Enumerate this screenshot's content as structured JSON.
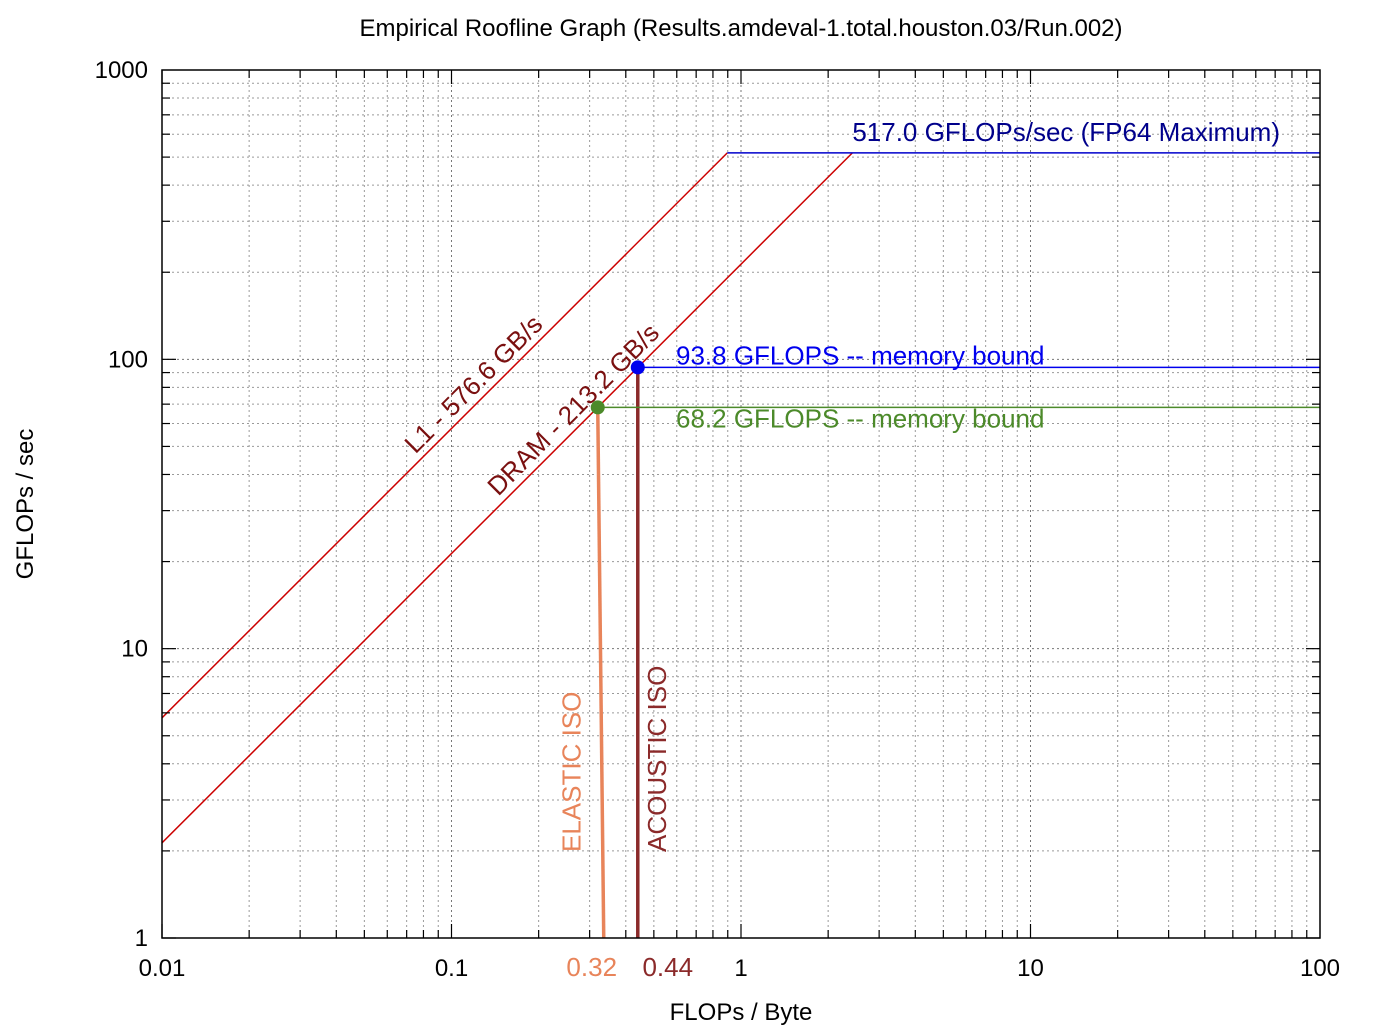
{
  "chart_data": {
    "type": "line",
    "title": "Empirical Roofline Graph (Results.amdeval-1.total.houston.03/Run.002)",
    "xlabel": "FLOPs / Byte",
    "ylabel": "GFLOPs / sec",
    "xscale": "log",
    "yscale": "log",
    "xlim": [
      0.01,
      100
    ],
    "ylim": [
      1,
      1000
    ],
    "grid": true,
    "x_ticks": [
      {
        "value": 0.01,
        "label": "0.01"
      },
      {
        "value": 0.1,
        "label": "0.1"
      },
      {
        "value": 1,
        "label": "1"
      },
      {
        "value": 10,
        "label": "10"
      },
      {
        "value": 100,
        "label": "100"
      }
    ],
    "y_ticks": [
      {
        "value": 1,
        "label": "1"
      },
      {
        "value": 10,
        "label": "10"
      },
      {
        "value": 100,
        "label": "100"
      },
      {
        "value": 1000,
        "label": "1000"
      }
    ],
    "ceilings": [
      {
        "name": "L1 - 576.6 GB/s",
        "bandwidth": 576.6,
        "color": "#cc0000",
        "label_color": "#7a1010"
      },
      {
        "name": "DRAM - 213.2 GB/s",
        "bandwidth": 213.2,
        "color": "#cc0000",
        "label_color": "#7a1010"
      }
    ],
    "peak": {
      "name": "517.0 GFLOPs/sec (FP64 Maximum)",
      "value": 517.0,
      "color": "#0000cc",
      "label_color": "#00008b"
    },
    "points": [
      {
        "x": 0.44,
        "y": 93.8,
        "color": "#0000ee",
        "label": "93.8 GFLOPS -- memory bound",
        "line_color": "#0000ee"
      },
      {
        "x": 0.32,
        "y": 68.2,
        "color": "#4c8a2a",
        "label": "68.2 GFLOPS -- memory bound",
        "line_color": "#4c8a2a"
      }
    ],
    "kernels": [
      {
        "name": "ELASTIC ISO",
        "x": 0.32,
        "x_label": "0.32",
        "color": "#e8845a"
      },
      {
        "name": "ACOUSTIC ISO",
        "x": 0.44,
        "x_label": "0.44",
        "color": "#8b2a2a"
      }
    ]
  }
}
